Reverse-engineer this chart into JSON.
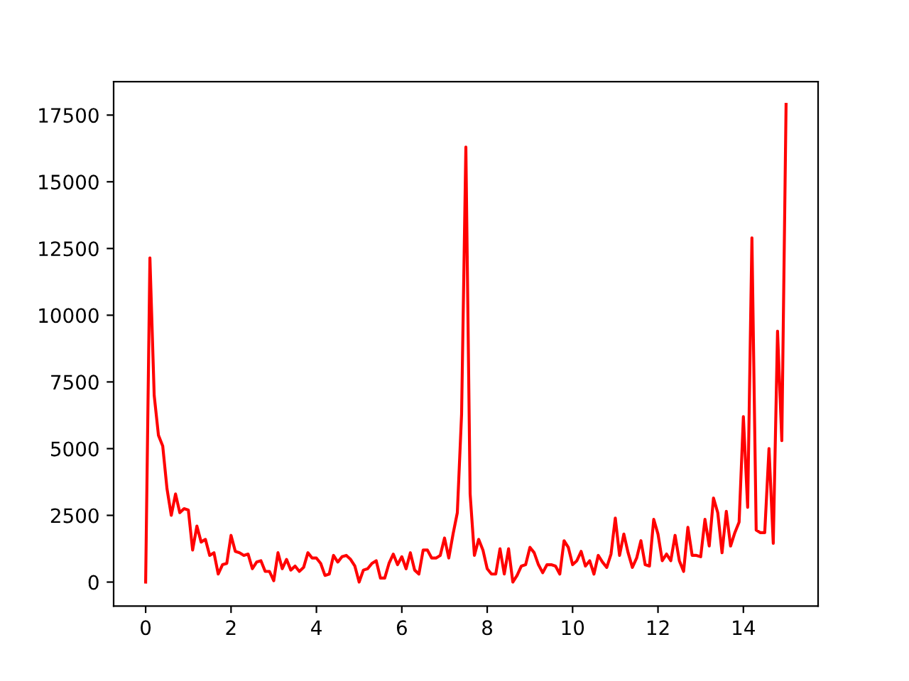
{
  "chart_data": {
    "type": "line",
    "x": [
      0,
      0.1,
      0.2,
      0.3,
      0.4,
      0.5,
      0.6,
      0.7,
      0.8,
      0.9,
      1.0,
      1.1,
      1.2,
      1.3,
      1.4,
      1.5,
      1.6,
      1.7,
      1.8,
      1.9,
      2.0,
      2.1,
      2.2,
      2.3,
      2.4,
      2.5,
      2.6,
      2.7,
      2.8,
      2.9,
      3.0,
      3.1,
      3.2,
      3.3,
      3.4,
      3.5,
      3.6,
      3.7,
      3.8,
      3.9,
      4.0,
      4.1,
      4.2,
      4.3,
      4.4,
      4.5,
      4.6,
      4.7,
      4.8,
      4.9,
      5.0,
      5.1,
      5.2,
      5.3,
      5.4,
      5.5,
      5.6,
      5.7,
      5.8,
      5.9,
      6.0,
      6.1,
      6.2,
      6.3,
      6.4,
      6.5,
      6.6,
      6.7,
      6.8,
      6.9,
      7.0,
      7.1,
      7.2,
      7.3,
      7.4,
      7.5,
      7.6,
      7.7,
      7.8,
      7.9,
      8.0,
      8.1,
      8.2,
      8.3,
      8.4,
      8.5,
      8.6,
      8.7,
      8.8,
      8.9,
      9.0,
      9.1,
      9.2,
      9.3,
      9.4,
      9.5,
      9.6,
      9.7,
      9.8,
      9.9,
      10.0,
      10.1,
      10.2,
      10.3,
      10.4,
      10.5,
      10.6,
      10.7,
      10.8,
      10.9,
      11.0,
      11.1,
      11.2,
      11.3,
      11.4,
      11.5,
      11.6,
      11.7,
      11.8,
      11.9,
      12.0,
      12.1,
      12.2,
      12.3,
      12.4,
      12.5,
      12.6,
      12.7,
      12.8,
      12.9,
      13.0,
      13.1,
      13.2,
      13.3,
      13.4,
      13.5,
      13.6,
      13.7,
      13.8,
      13.9,
      14.0,
      14.1,
      14.2,
      14.3,
      14.4,
      14.5,
      14.6,
      14.7,
      14.8,
      14.9,
      15.0
    ],
    "series": [
      {
        "color": "#ff0000",
        "values": [
          0,
          12150,
          7000,
          5500,
          5100,
          3500,
          2500,
          3300,
          2600,
          2750,
          2700,
          1200,
          2100,
          1500,
          1600,
          1000,
          1100,
          300,
          650,
          700,
          1750,
          1150,
          1100,
          1000,
          1050,
          500,
          750,
          800,
          400,
          400,
          50,
          1100,
          500,
          850,
          450,
          600,
          400,
          550,
          1100,
          900,
          900,
          700,
          250,
          300,
          1000,
          750,
          950,
          1000,
          850,
          600,
          0,
          450,
          500,
          700,
          800,
          150,
          150,
          700,
          1050,
          650,
          950,
          500,
          1100,
          450,
          300,
          1200,
          1200,
          900,
          900,
          1000,
          1650,
          900,
          1800,
          2600,
          6300,
          16300,
          3300,
          1000,
          1600,
          1200,
          500,
          300,
          300,
          1250,
          300,
          1250,
          0,
          250,
          600,
          650,
          1300,
          1100,
          650,
          350,
          650,
          650,
          600,
          300,
          1550,
          1300,
          650,
          800,
          1150,
          600,
          800,
          300,
          1000,
          750,
          550,
          1050,
          2400,
          1000,
          1800,
          1100,
          550,
          900,
          1550,
          650,
          600,
          2350,
          1800,
          800,
          1050,
          800,
          1750,
          800,
          400,
          2050,
          1000,
          1000,
          950,
          2350,
          1350,
          3150,
          2600,
          1100,
          2650,
          1350,
          1850,
          2250,
          6200,
          2800,
          12900,
          1950,
          1850,
          1850,
          5000,
          1450,
          9400,
          5300,
          17900
        ]
      }
    ],
    "xlim": [
      -0.75,
      15.75
    ],
    "ylim": [
      -900,
      18750
    ],
    "xticks": [
      0,
      2,
      4,
      6,
      8,
      10,
      12,
      14
    ],
    "yticks": [
      0,
      2500,
      5000,
      7500,
      10000,
      12500,
      15000,
      17500
    ],
    "grid": false,
    "legend": false,
    "marker": "none",
    "line_style": "solid"
  }
}
